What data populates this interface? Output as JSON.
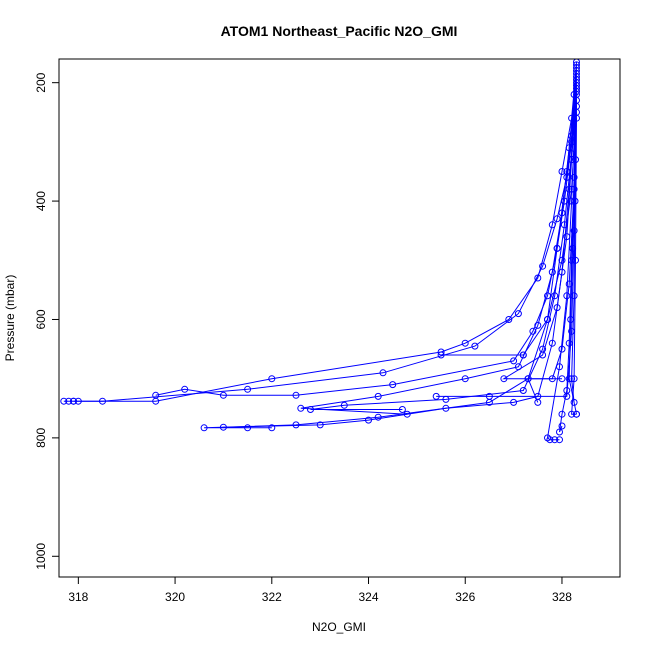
{
  "chart_data": {
    "type": "line",
    "title": "ATOM1 Northeast_Pacific N2O_GMI",
    "xlabel": "N2O_GMI",
    "ylabel": "Pressure (mbar)",
    "xlim": [
      317.6,
      329.2
    ],
    "ylim": [
      1035,
      160
    ],
    "y_reversed": true,
    "grid": false,
    "legend": "none",
    "marker": "open-circle",
    "color": "#0000ff",
    "x_ticks": [
      318,
      320,
      322,
      324,
      326,
      328
    ],
    "y_ticks": [
      200,
      400,
      600,
      800,
      1000
    ],
    "series": [
      {
        "points": [
          [
            328.3,
            165
          ],
          [
            328.25,
            220
          ],
          [
            328.2,
            290
          ],
          [
            328.1,
            360
          ],
          [
            327.9,
            430
          ],
          [
            327.6,
            510
          ],
          [
            327.1,
            590
          ],
          [
            326.2,
            645
          ],
          [
            324.3,
            690
          ],
          [
            321.5,
            718
          ],
          [
            318.5,
            738
          ],
          [
            318.0,
            738
          ],
          [
            317.9,
            738
          ],
          [
            317.8,
            738
          ],
          [
            317.7,
            738
          ]
        ]
      },
      {
        "points": [
          [
            328.3,
            170
          ],
          [
            328.2,
            260
          ],
          [
            328.0,
            350
          ],
          [
            327.8,
            440
          ],
          [
            327.5,
            530
          ],
          [
            326.9,
            600
          ],
          [
            326.0,
            640
          ],
          [
            325.5,
            655
          ],
          [
            322.0,
            700
          ],
          [
            319.6,
            738
          ],
          [
            317.9,
            738
          ]
        ]
      },
      {
        "points": [
          [
            328.3,
            175
          ],
          [
            328.2,
            300
          ],
          [
            328.05,
            400
          ],
          [
            327.9,
            480
          ],
          [
            327.7,
            560
          ],
          [
            327.4,
            620
          ],
          [
            327.0,
            670
          ],
          [
            324.5,
            710
          ],
          [
            322.5,
            728
          ],
          [
            321.0,
            728
          ],
          [
            320.2,
            718
          ],
          [
            319.6,
            728
          ]
        ]
      },
      {
        "points": [
          [
            328.3,
            180
          ],
          [
            328.15,
            310
          ],
          [
            328.0,
            420
          ],
          [
            327.8,
            520
          ],
          [
            327.5,
            610
          ],
          [
            327.1,
            680
          ],
          [
            326.0,
            700
          ],
          [
            324.2,
            730
          ],
          [
            322.6,
            750
          ],
          [
            324.8,
            760
          ]
        ]
      },
      {
        "points": [
          [
            328.3,
            185
          ],
          [
            328.2,
            320
          ],
          [
            328.05,
            440
          ],
          [
            327.85,
            560
          ],
          [
            327.6,
            650
          ],
          [
            327.2,
            720
          ],
          [
            325.6,
            735
          ],
          [
            323.5,
            745
          ],
          [
            322.8,
            752
          ],
          [
            324.7,
            752
          ]
        ]
      },
      {
        "points": [
          [
            328.3,
            190
          ],
          [
            328.1,
            350
          ],
          [
            327.9,
            480
          ],
          [
            327.7,
            600
          ],
          [
            327.3,
            700
          ],
          [
            326.5,
            740
          ],
          [
            324.2,
            765
          ],
          [
            322.5,
            778
          ],
          [
            320.6,
            783
          ],
          [
            321.5,
            783
          ],
          [
            322.0,
            783
          ]
        ]
      },
      {
        "points": [
          [
            328.3,
            195
          ],
          [
            328.15,
            380
          ],
          [
            328.0,
            520
          ],
          [
            327.8,
            640
          ],
          [
            327.5,
            730
          ],
          [
            327.0,
            740
          ],
          [
            325.6,
            750
          ],
          [
            324.0,
            770
          ],
          [
            323.0,
            778
          ],
          [
            321.0,
            782
          ]
        ]
      },
      {
        "points": [
          [
            328.3,
            200
          ],
          [
            328.2,
            400
          ],
          [
            328.1,
            560
          ],
          [
            327.95,
            680
          ],
          [
            327.7,
            800
          ],
          [
            327.75,
            803
          ],
          [
            327.85,
            803
          ],
          [
            327.95,
            803
          ]
        ]
      },
      {
        "points": [
          [
            328.3,
            205
          ],
          [
            328.25,
            360
          ],
          [
            328.2,
            500
          ],
          [
            328.15,
            640
          ],
          [
            328.1,
            720
          ],
          [
            328.0,
            760
          ],
          [
            327.95,
            790
          ],
          [
            328.0,
            780
          ]
        ]
      },
      {
        "points": [
          [
            328.3,
            210
          ],
          [
            328.28,
            330
          ],
          [
            328.22,
            480
          ],
          [
            328.18,
            600
          ],
          [
            328.15,
            700
          ],
          [
            328.3,
            760
          ]
        ]
      },
      {
        "points": [
          [
            328.3,
            215
          ],
          [
            328.27,
            400
          ],
          [
            328.25,
            560
          ],
          [
            328.2,
            700
          ],
          [
            328.25,
            740
          ]
        ]
      },
      {
        "points": [
          [
            328.3,
            220
          ],
          [
            328.2,
            330
          ],
          [
            328.1,
            460
          ],
          [
            327.9,
            580
          ],
          [
            327.6,
            660
          ],
          [
            326.8,
            700
          ],
          [
            328.0,
            700
          ]
        ]
      },
      {
        "points": [
          [
            328.3,
            230
          ],
          [
            328.25,
            450
          ],
          [
            328.2,
            620
          ],
          [
            328.1,
            730
          ],
          [
            326.5,
            730
          ],
          [
            325.4,
            730
          ]
        ]
      },
      {
        "points": [
          [
            328.3,
            240
          ],
          [
            328.2,
            380
          ],
          [
            328.0,
            500
          ],
          [
            327.7,
            600
          ],
          [
            327.2,
            660
          ],
          [
            325.5,
            660
          ],
          [
            327.2,
            660
          ]
        ]
      },
      {
        "points": [
          [
            328.3,
            250
          ],
          [
            328.25,
            380
          ],
          [
            328.15,
            540
          ],
          [
            328.0,
            650
          ],
          [
            327.8,
            700
          ],
          [
            327.3,
            700
          ],
          [
            327.5,
            740
          ]
        ]
      },
      {
        "points": [
          [
            328.3,
            260
          ],
          [
            328.28,
            500
          ],
          [
            328.25,
            700
          ],
          [
            328.2,
            760
          ],
          [
            328.3,
            760
          ]
        ]
      }
    ]
  }
}
